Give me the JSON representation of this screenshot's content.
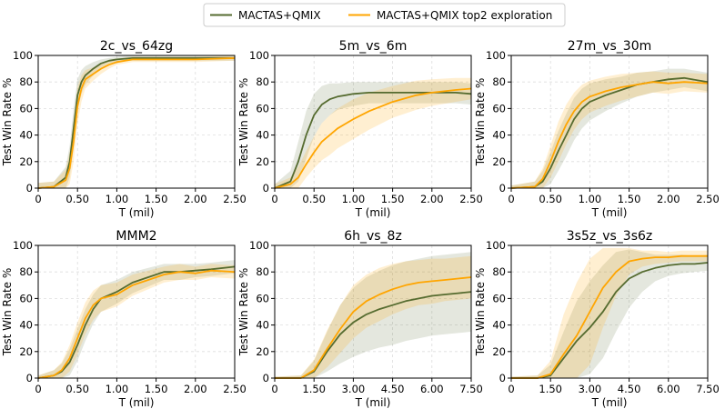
{
  "legend": {
    "placement": "top-center",
    "entries": [
      {
        "label": "MACTAS+QMIX",
        "color": "#556b2f"
      },
      {
        "label": "MACTAS+QMIX top2 exploration",
        "color": "#ffa500"
      }
    ]
  },
  "chart_data": [
    {
      "type": "line",
      "title": "2c_vs_64zg",
      "xlabel": "T (mil)",
      "ylabel": "Test Win Rate %",
      "xlim": [
        0,
        2.5
      ],
      "ylim": [
        0,
        100
      ],
      "xticks": [
        0,
        0.5,
        1.0,
        1.5,
        2.0,
        2.5
      ],
      "xtick_labels": [
        "0",
        "0.50",
        "1.00",
        "1.50",
        "2.00",
        "2.50"
      ],
      "yticks": [
        0,
        20,
        40,
        60,
        80,
        100
      ],
      "grid": true,
      "x": [
        0,
        0.2,
        0.35,
        0.4,
        0.45,
        0.5,
        0.55,
        0.6,
        0.7,
        0.8,
        0.9,
        1.0,
        1.2,
        1.5,
        2.0,
        2.5
      ],
      "series": [
        {
          "name": "MACTAS+QMIX",
          "color": "#556b2f",
          "values": [
            0,
            1,
            8,
            20,
            45,
            70,
            80,
            85,
            90,
            94,
            96,
            97,
            98,
            98,
            98,
            98
          ],
          "band": [
            4,
            4,
            8,
            12,
            15,
            12,
            9,
            7,
            5,
            3,
            2,
            2,
            2,
            2,
            2,
            2
          ]
        },
        {
          "name": "MACTAS+QMIX top2 exploration",
          "color": "#ffa500",
          "values": [
            0,
            1,
            6,
            15,
            35,
            62,
            75,
            82,
            86,
            90,
            93,
            95,
            97,
            97,
            97,
            98
          ],
          "band": [
            4,
            4,
            8,
            12,
            15,
            14,
            10,
            7,
            5,
            4,
            3,
            2,
            2,
            2,
            2,
            2
          ]
        }
      ]
    },
    {
      "type": "line",
      "title": "5m_vs_6m",
      "xlabel": "T (mil)",
      "ylabel": "Test Win Rate %",
      "xlim": [
        0,
        2.5
      ],
      "ylim": [
        0,
        100
      ],
      "xticks": [
        0,
        0.5,
        1.0,
        1.5,
        2.0,
        2.5
      ],
      "xtick_labels": [
        "0",
        "0.50",
        "1.00",
        "1.50",
        "2.00",
        "2.50"
      ],
      "yticks": [
        0,
        20,
        40,
        60,
        80,
        100
      ],
      "grid": true,
      "x": [
        0,
        0.2,
        0.3,
        0.4,
        0.5,
        0.6,
        0.7,
        0.8,
        1.0,
        1.2,
        1.5,
        1.8,
        2.0,
        2.3,
        2.5
      ],
      "series": [
        {
          "name": "MACTAS+QMIX",
          "color": "#556b2f",
          "values": [
            0,
            5,
            20,
            40,
            55,
            63,
            67,
            69,
            71,
            72,
            72,
            72,
            72,
            72,
            71
          ],
          "band": [
            3,
            8,
            15,
            18,
            16,
            14,
            12,
            10,
            9,
            8,
            8,
            8,
            8,
            8,
            8
          ]
        },
        {
          "name": "MACTAS+QMIX top2 exploration",
          "color": "#ffa500",
          "values": [
            0,
            3,
            8,
            18,
            27,
            35,
            40,
            45,
            52,
            58,
            65,
            70,
            72,
            74,
            75
          ],
          "band": [
            3,
            5,
            8,
            10,
            12,
            14,
            15,
            15,
            15,
            14,
            12,
            11,
            10,
            9,
            8
          ]
        }
      ]
    },
    {
      "type": "line",
      "title": "27m_vs_30m",
      "xlabel": "T (mil)",
      "ylabel": "Test Win Rate %",
      "xlim": [
        0,
        2.5
      ],
      "ylim": [
        0,
        100
      ],
      "xticks": [
        0,
        0.5,
        1.0,
        1.5,
        2.0,
        2.5
      ],
      "xtick_labels": [
        "0",
        "0.50",
        "1.00",
        "1.50",
        "2.00",
        "2.50"
      ],
      "yticks": [
        0,
        20,
        40,
        60,
        80,
        100
      ],
      "grid": true,
      "x": [
        0,
        0.3,
        0.4,
        0.5,
        0.6,
        0.7,
        0.8,
        0.9,
        1.0,
        1.2,
        1.4,
        1.6,
        1.8,
        2.0,
        2.2,
        2.5
      ],
      "series": [
        {
          "name": "MACTAS+QMIX",
          "color": "#556b2f",
          "values": [
            0,
            1,
            5,
            15,
            28,
            40,
            52,
            60,
            65,
            70,
            74,
            78,
            80,
            82,
            83,
            80
          ],
          "band": [
            2,
            4,
            8,
            12,
            15,
            16,
            16,
            15,
            14,
            12,
            10,
            9,
            8,
            8,
            7,
            7
          ]
        },
        {
          "name": "MACTAS+QMIX top2 exploration",
          "color": "#ffa500",
          "values": [
            0,
            1,
            7,
            20,
            35,
            48,
            58,
            65,
            69,
            73,
            76,
            78,
            80,
            79,
            80,
            79
          ],
          "band": [
            2,
            4,
            8,
            12,
            15,
            15,
            14,
            13,
            12,
            11,
            10,
            9,
            8,
            8,
            7,
            7
          ]
        }
      ]
    },
    {
      "type": "line",
      "title": "MMM2",
      "xlabel": "T (mil)",
      "ylabel": "Test Win Rate %",
      "xlim": [
        0,
        2.5
      ],
      "ylim": [
        0,
        100
      ],
      "xticks": [
        0,
        0.5,
        1.0,
        1.5,
        2.0,
        2.5
      ],
      "xtick_labels": [
        "0",
        "0.50",
        "1.00",
        "1.50",
        "2.00",
        "2.50"
      ],
      "yticks": [
        0,
        20,
        40,
        60,
        80,
        100
      ],
      "grid": true,
      "x": [
        0,
        0.2,
        0.3,
        0.4,
        0.5,
        0.6,
        0.7,
        0.8,
        1.0,
        1.2,
        1.4,
        1.6,
        1.8,
        2.0,
        2.2,
        2.5
      ],
      "series": [
        {
          "name": "MACTAS+QMIX",
          "color": "#556b2f",
          "values": [
            0,
            2,
            5,
            12,
            25,
            40,
            52,
            60,
            65,
            72,
            76,
            80,
            80,
            81,
            82,
            84
          ],
          "band": [
            2,
            4,
            6,
            10,
            12,
            12,
            11,
            10,
            9,
            8,
            7,
            6,
            6,
            5,
            5,
            5
          ]
        },
        {
          "name": "MACTAS+QMIX top2 exploration",
          "color": "#ffa500",
          "values": [
            0,
            2,
            6,
            15,
            30,
            45,
            55,
            60,
            63,
            70,
            74,
            78,
            80,
            79,
            81,
            80
          ],
          "band": [
            2,
            4,
            6,
            10,
            12,
            12,
            11,
            10,
            9,
            8,
            7,
            6,
            6,
            5,
            5,
            5
          ]
        }
      ]
    },
    {
      "type": "line",
      "title": "6h_vs_8z",
      "xlabel": "T (mil)",
      "ylabel": "Test Win Rate %",
      "xlim": [
        0,
        7.5
      ],
      "ylim": [
        0,
        100
      ],
      "xticks": [
        0,
        1.5,
        3.0,
        4.5,
        6.0,
        7.5
      ],
      "xtick_labels": [
        "0",
        "1.50",
        "3.00",
        "4.50",
        "6.00",
        "7.50"
      ],
      "yticks": [
        0,
        20,
        40,
        60,
        80,
        100
      ],
      "grid": true,
      "x": [
        0,
        1.0,
        1.5,
        2.0,
        2.5,
        3.0,
        3.5,
        4.0,
        4.5,
        5.0,
        5.5,
        6.0,
        6.5,
        7.0,
        7.5
      ],
      "series": [
        {
          "name": "MACTAS+QMIX",
          "color": "#556b2f",
          "values": [
            0,
            0,
            5,
            20,
            33,
            42,
            48,
            52,
            55,
            58,
            60,
            62,
            63,
            64,
            65
          ],
          "band": [
            1,
            2,
            8,
            15,
            22,
            26,
            28,
            29,
            30,
            30,
            30,
            30,
            30,
            30,
            30
          ]
        },
        {
          "name": "MACTAS+QMIX top2 exploration",
          "color": "#ffa500",
          "values": [
            0,
            0,
            6,
            22,
            37,
            50,
            58,
            63,
            67,
            70,
            72,
            73,
            74,
            75,
            76
          ],
          "band": [
            1,
            2,
            8,
            14,
            18,
            20,
            20,
            20,
            19,
            18,
            17,
            17,
            16,
            16,
            16
          ]
        }
      ]
    },
    {
      "type": "line",
      "title": "3s5z_vs_3s6z",
      "xlabel": "T (mil)",
      "ylabel": "Test Win Rate %",
      "xlim": [
        0,
        7.5
      ],
      "ylim": [
        0,
        100
      ],
      "xticks": [
        0,
        1.5,
        3.0,
        4.5,
        6.0,
        7.5
      ],
      "xtick_labels": [
        "0",
        "1.50",
        "3.00",
        "4.50",
        "6.00",
        "7.50"
      ],
      "yticks": [
        0,
        20,
        40,
        60,
        80,
        100
      ],
      "grid": true,
      "x": [
        0,
        1.0,
        1.5,
        2.0,
        2.5,
        3.0,
        3.5,
        4.0,
        4.5,
        5.0,
        5.5,
        6.0,
        6.5,
        7.0,
        7.5
      ],
      "series": [
        {
          "name": "MACTAS+QMIX",
          "color": "#556b2f",
          "values": [
            0,
            0,
            2,
            15,
            28,
            38,
            50,
            65,
            75,
            80,
            83,
            85,
            86,
            86,
            87
          ],
          "band": [
            1,
            2,
            8,
            20,
            30,
            35,
            35,
            30,
            22,
            15,
            10,
            8,
            7,
            6,
            6
          ]
        },
        {
          "name": "MACTAS+QMIX top2 exploration",
          "color": "#ffa500",
          "values": [
            0,
            0,
            3,
            18,
            32,
            50,
            68,
            80,
            88,
            90,
            91,
            91,
            92,
            92,
            92
          ],
          "band": [
            1,
            2,
            10,
            30,
            40,
            40,
            30,
            18,
            10,
            6,
            5,
            4,
            4,
            4,
            4
          ]
        }
      ]
    }
  ]
}
